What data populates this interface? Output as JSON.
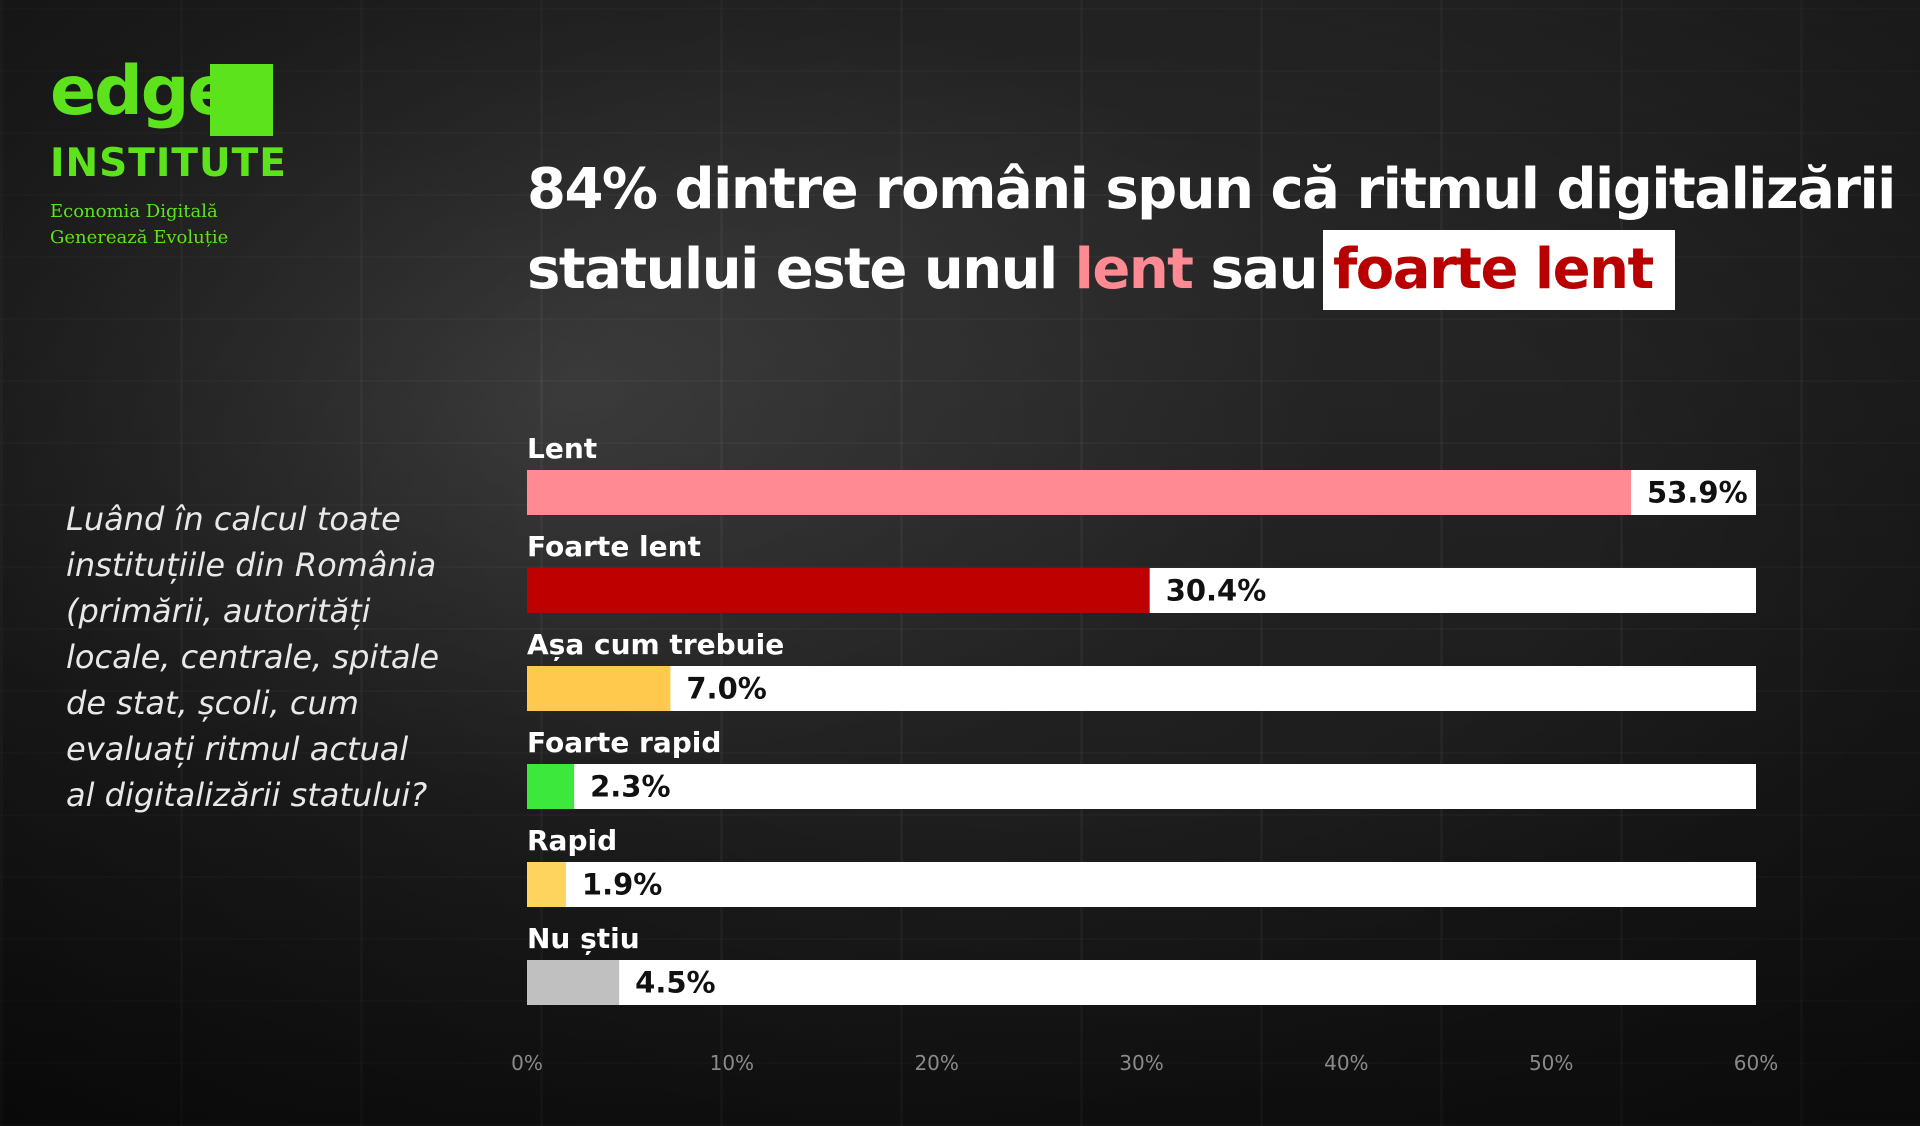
{
  "logo": {
    "word": "edge",
    "institute": "INSTITUTE",
    "tagline_line1": "Economia Digitală",
    "tagline_line2": "Generează Evoluție",
    "color": "#5ce31c"
  },
  "title": {
    "line1": "84% dintre români spun că ritmul digitalizării",
    "line2_prefix": "statului este unul ",
    "highlight_pink": "lent",
    "middle": " sau",
    "highlight_box": "foarte lent"
  },
  "question": "Luând în calcul toate instituțiile din România (primării, autorități locale, centrale, spitale de stat, școli, cum evaluați ritmul actual al digitalizării statului?",
  "chart_data": {
    "type": "bar",
    "orientation": "horizontal",
    "categories": [
      "Lent",
      "Foarte lent",
      "Așa cum trebuie",
      "Foarte rapid",
      "Rapid",
      "Nu știu"
    ],
    "values": [
      53.9,
      30.4,
      7.0,
      2.3,
      1.9,
      4.5
    ],
    "value_labels": [
      "53.9%",
      "30.4%",
      "7.0%",
      "2.3%",
      "1.9%",
      "4.5%"
    ],
    "colors": [
      "#ff8a94",
      "#bf0000",
      "#ffc94d",
      "#3de83d",
      "#ffd45e",
      "#c0c0c0"
    ],
    "track_color": "#ffffff",
    "xlim": [
      0,
      60
    ],
    "ticks": [
      0,
      10,
      20,
      30,
      40,
      50,
      60
    ],
    "tick_labels": [
      "0%",
      "10%",
      "20%",
      "30%",
      "40%",
      "50%",
      "60%"
    ],
    "grid": false,
    "legend": "none"
  }
}
